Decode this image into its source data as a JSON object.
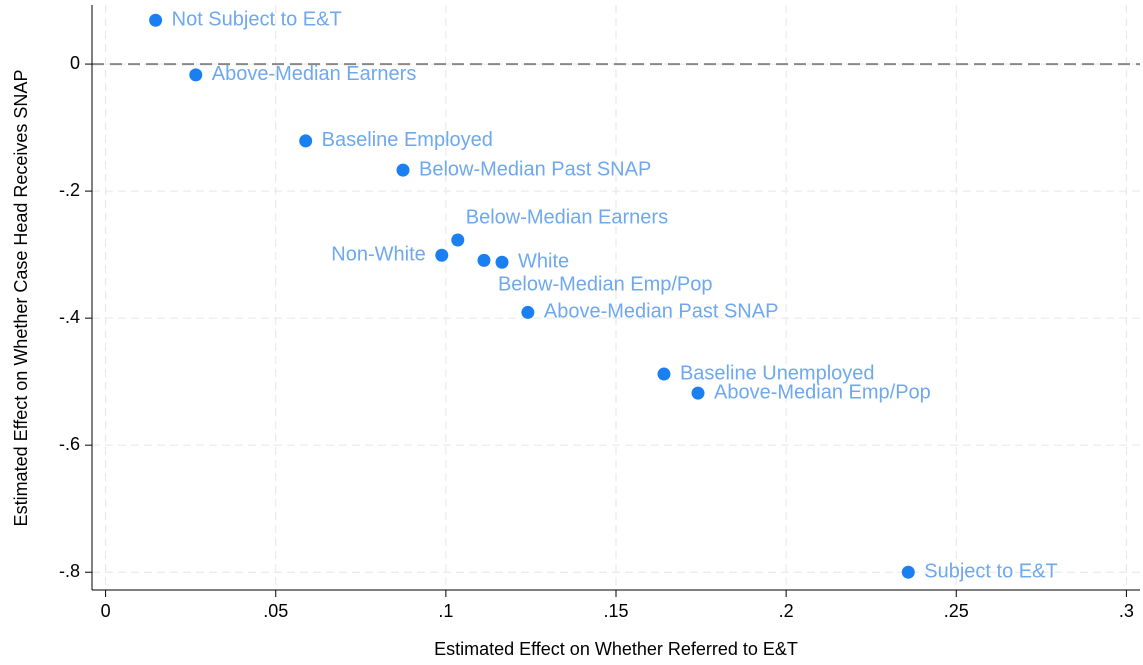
{
  "chart_data": {
    "type": "scatter",
    "xlabel": "Estimated Effect on Whether Referred to E&T",
    "ylabel": "Estimated Effect on Whether Case Head Receives SNAP",
    "x": [
      0.0147,
      0.0265,
      0.0588,
      0.0874,
      0.1035,
      0.0988,
      0.1112,
      0.1165,
      0.1241,
      0.1641,
      0.1741,
      0.2359
    ],
    "values": [
      0.069,
      -0.017,
      -0.121,
      -0.167,
      -0.277,
      -0.301,
      -0.309,
      -0.312,
      -0.391,
      -0.488,
      -0.518,
      -0.8
    ],
    "point_labels": [
      "Not Subject to E&T",
      "Above-Median Earners",
      "Baseline Employed",
      "Below-Median Past SNAP",
      "Below-Median Earners",
      "Non-White",
      "Below-Median Emp/Pop",
      "White",
      "Above-Median Past SNAP",
      "Baseline Unemployed",
      "Above-Median Emp/Pop",
      "Subject to E&T"
    ],
    "color": "#1a7ff0",
    "label_color": "#6ea8ee",
    "xlim": [
      -0.004,
      0.304
    ],
    "ylim": [
      -0.828,
      0.093
    ],
    "xticks": [
      0,
      {
        "value": 0.05,
        "label": ".05"
      },
      {
        "value": 0.1,
        "label": ".1"
      },
      {
        "value": 0.15,
        "label": ".15"
      },
      {
        "value": 0.2,
        "label": ".2"
      },
      {
        "value": 0.25,
        "label": ".25"
      },
      {
        "value": 0.3,
        "label": ".3"
      }
    ],
    "yticks": [
      0,
      {
        "value": -0.2,
        "label": "-.2"
      },
      {
        "value": -0.4,
        "label": "-.4"
      },
      {
        "value": -0.6,
        "label": "-.6"
      },
      {
        "value": -0.8,
        "label": "-.8"
      }
    ],
    "hline": 0,
    "grid": true
  }
}
